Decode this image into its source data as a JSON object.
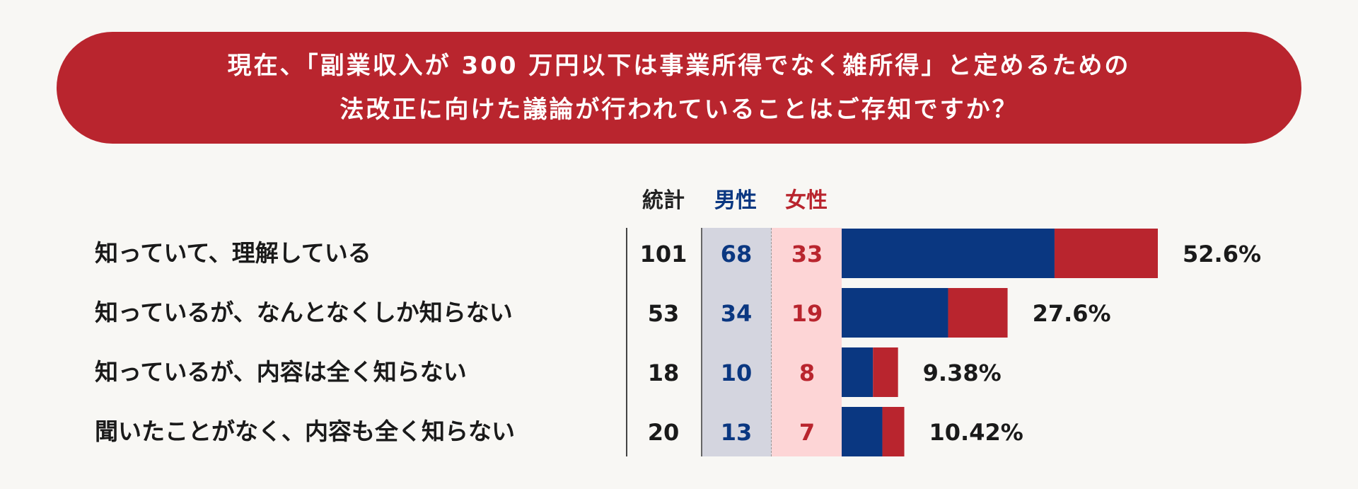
{
  "title": {
    "line1": "現在、「副業収入が 300 万円以下は事業所得でなく雑所得」と定めるための",
    "line2": "法改正に向けた議論が行われていることはご存知ですか？"
  },
  "columns": {
    "total": "統計",
    "male": "男性",
    "female": "女性"
  },
  "colors": {
    "male": "#0a3781",
    "female": "#b9252e",
    "banner": "#b9252e"
  },
  "chart_data": {
    "type": "bar",
    "orientation": "horizontal",
    "stacked": true,
    "categories": [
      "知っていて、理解している",
      "知っているが、なんとなくしか知らない",
      "知っているが、内容は全く知らない",
      "聞いたことがなく、内容も全く知らない"
    ],
    "series": [
      {
        "name": "男性",
        "values": [
          68,
          34,
          10,
          13
        ]
      },
      {
        "name": "女性",
        "values": [
          33,
          19,
          8,
          7
        ]
      }
    ],
    "totals": [
      101,
      53,
      18,
      20
    ],
    "total_display": [
      "101",
      "53",
      "18",
      "20"
    ],
    "male_display": [
      "68",
      "34",
      "10",
      "13"
    ],
    "female_display": [
      "33",
      "19",
      "8",
      "7"
    ],
    "percent_labels": [
      "52.6%",
      "27.6%",
      "9.38%",
      "10.42%"
    ],
    "xlim": [
      0,
      101
    ]
  }
}
